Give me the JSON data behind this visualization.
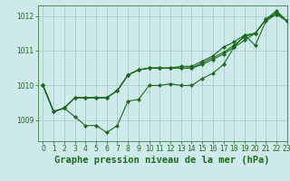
{
  "title": "Graphe pression niveau de la mer (hPa)",
  "background_color": "#ceeaea",
  "grid_color": "#aacccc",
  "line_color": "#1a6b1a",
  "xlim": [
    -0.5,
    23
  ],
  "ylim": [
    1008.4,
    1012.3
  ],
  "yticks": [
    1009,
    1010,
    1011,
    1012
  ],
  "xticks": [
    0,
    1,
    2,
    3,
    4,
    5,
    6,
    7,
    8,
    9,
    10,
    11,
    12,
    13,
    14,
    15,
    16,
    17,
    18,
    19,
    20,
    21,
    22,
    23
  ],
  "series": [
    [
      1010.0,
      1009.25,
      1009.35,
      1009.1,
      1008.85,
      1008.85,
      1008.65,
      1008.85,
      1009.55,
      1009.6,
      1010.0,
      1010.0,
      1010.05,
      1010.0,
      1010.0,
      1010.2,
      1010.35,
      1010.6,
      1011.1,
      1011.45,
      1011.15,
      1011.85,
      1012.05,
      1011.85
    ],
    [
      1010.0,
      1009.25,
      1009.35,
      1009.65,
      1009.65,
      1009.65,
      1009.65,
      1009.85,
      1010.3,
      1010.45,
      1010.5,
      1010.5,
      1010.5,
      1010.5,
      1010.5,
      1010.6,
      1010.75,
      1010.9,
      1011.1,
      1011.3,
      1011.5,
      1011.9,
      1012.15,
      1011.85
    ],
    [
      1010.0,
      1009.25,
      1009.35,
      1009.65,
      1009.65,
      1009.65,
      1009.65,
      1009.85,
      1010.3,
      1010.45,
      1010.5,
      1010.5,
      1010.5,
      1010.5,
      1010.5,
      1010.65,
      1010.8,
      1010.95,
      1011.15,
      1011.4,
      1011.5,
      1011.9,
      1012.1,
      1011.85
    ],
    [
      1010.0,
      1009.25,
      1009.35,
      1009.65,
      1009.65,
      1009.65,
      1009.65,
      1009.85,
      1010.3,
      1010.45,
      1010.5,
      1010.5,
      1010.5,
      1010.55,
      1010.55,
      1010.7,
      1010.85,
      1011.1,
      1011.25,
      1011.45,
      1011.5,
      1011.9,
      1012.05,
      1011.85
    ]
  ],
  "marker": "D",
  "markersize": 2.0,
  "linewidth": 0.8,
  "title_fontsize": 7.5,
  "tick_fontsize": 5.5
}
